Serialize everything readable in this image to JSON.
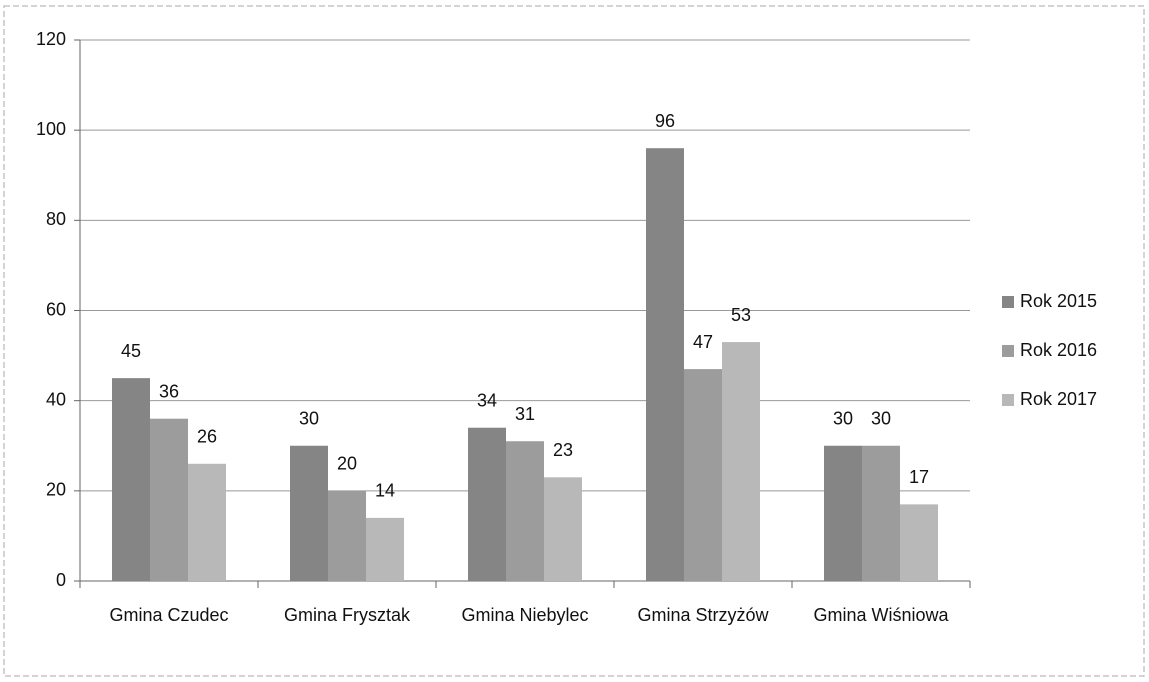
{
  "chart_data": {
    "type": "bar",
    "categories": [
      "Gmina Czudec",
      "Gmina Frysztak",
      "Gmina Niebylec",
      "Gmina Strzyżów",
      "Gmina Wiśniowa"
    ],
    "series": [
      {
        "name": "Rok 2015",
        "color": "#858585",
        "values": [
          45,
          30,
          34,
          96,
          30
        ]
      },
      {
        "name": "Rok 2016",
        "color": "#9c9c9c",
        "values": [
          36,
          20,
          31,
          47,
          30
        ]
      },
      {
        "name": "Rok 2017",
        "color": "#b8b8b8",
        "values": [
          26,
          14,
          23,
          53,
          17
        ]
      }
    ],
    "ylim": [
      0,
      120
    ],
    "yticks": [
      0,
      20,
      40,
      60,
      80,
      100,
      120
    ],
    "grid": true,
    "legend": "right"
  }
}
